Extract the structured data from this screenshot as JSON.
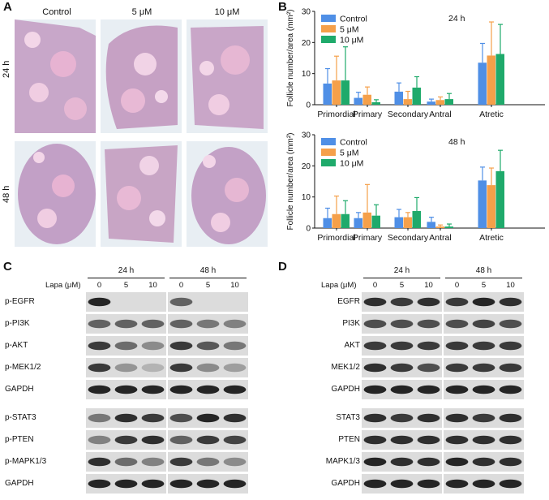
{
  "panel_labels": {
    "a": "A",
    "b": "B",
    "c": "C",
    "d": "D"
  },
  "panel_a": {
    "columns": [
      "Control",
      "5 μM",
      "10 μM"
    ],
    "rows": [
      "24 h",
      "48 h"
    ]
  },
  "chart_data": [
    {
      "type": "bar",
      "title": "24 h",
      "ylabel": "Follicle number/area (mm²)",
      "categories": [
        "Primordial",
        "Primary",
        "Secondary",
        "Antral",
        "Atretic"
      ],
      "ylim": [
        0,
        30
      ],
      "yticks": [
        "0",
        "10",
        "20",
        "30"
      ],
      "colors": [
        "#4f8fe6",
        "#f5a04a",
        "#1faa6b"
      ],
      "series": [
        {
          "name": "Control",
          "values": [
            6.8,
            2.2,
            4.2,
            1.0,
            13.5
          ],
          "errors": [
            4.8,
            1.8,
            2.8,
            0.8,
            6.2
          ]
        },
        {
          "name": "5 μM",
          "values": [
            7.8,
            3.2,
            1.8,
            1.5,
            15.8
          ],
          "errors": [
            7.8,
            2.5,
            2.5,
            1.0,
            10.8
          ]
        },
        {
          "name": "10 μM",
          "values": [
            7.8,
            0.8,
            5.5,
            1.8,
            16.3
          ],
          "errors": [
            10.8,
            0.8,
            3.5,
            1.8,
            9.5
          ]
        }
      ]
    },
    {
      "type": "bar",
      "title": "48 h",
      "ylabel": "Follicle number/area (mm²)",
      "categories": [
        "Primordial",
        "Primary",
        "Secondary",
        "Antral",
        "Atretic"
      ],
      "ylim": [
        0,
        30
      ],
      "yticks": [
        "0",
        "10",
        "20",
        "30"
      ],
      "colors": [
        "#4f8fe6",
        "#f5a04a",
        "#1faa6b"
      ],
      "series": [
        {
          "name": "Control",
          "values": [
            3.2,
            3.2,
            3.5,
            2.0,
            15.3
          ],
          "errors": [
            3.2,
            1.8,
            2.5,
            1.5,
            4.3
          ]
        },
        {
          "name": "5 μM",
          "values": [
            4.5,
            5.0,
            3.5,
            0.5,
            13.8
          ],
          "errors": [
            5.8,
            9.0,
            1.5,
            0.5,
            5.5
          ]
        },
        {
          "name": "10 μM",
          "values": [
            4.5,
            4.0,
            5.5,
            0.5,
            18.3
          ],
          "errors": [
            4.3,
            3.5,
            4.3,
            0.8,
            6.7
          ]
        }
      ]
    }
  ],
  "panel_c": {
    "times": [
      "24 h",
      "48 h"
    ],
    "lapa_label": "Lapa (μM)",
    "doses": [
      "0",
      "5",
      "10",
      "0",
      "5",
      "10"
    ],
    "group1": [
      "p-EGFR",
      "p-PI3K",
      "p-AKT",
      "p-MEK1/2",
      "GAPDH"
    ],
    "group2": [
      "p-STAT3",
      "p-PTEN",
      "p-MAPK1/3",
      "GAPDH"
    ]
  },
  "panel_d": {
    "times": [
      "24 h",
      "48 h"
    ],
    "lapa_label": "Lapa (μM)",
    "doses": [
      "0",
      "5",
      "10",
      "0",
      "5",
      "10"
    ],
    "group1": [
      "EGFR",
      "PI3K",
      "AKT",
      "MEK1/2",
      "GAPDH"
    ],
    "group2": [
      "STAT3",
      "PTEN",
      "MAPK1/3",
      "GAPDH"
    ]
  }
}
